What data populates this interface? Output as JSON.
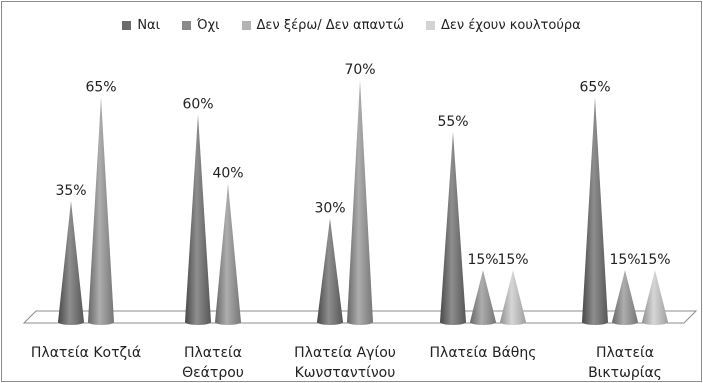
{
  "chart_data": {
    "type": "bar",
    "title": "",
    "xlabel": "",
    "ylabel": "",
    "ylim": [
      0,
      70
    ],
    "grid": false,
    "legend_placement": "top",
    "categories": [
      "Πλατεία Κοτζιά",
      "Πλατεία Θεάτρου",
      "Πλατεία Αγίου Κωνσταντίνου",
      "Πλατεία Βάθης",
      "Πλατεία Βικτωρίας"
    ],
    "category_lines": [
      [
        "Πλατεία Κοτζιά"
      ],
      [
        "Πλατεία",
        "Θεάτρου"
      ],
      [
        "Πλατεία Αγίου",
        "Κωνσταντίνου"
      ],
      [
        "Πλατεία Βάθης"
      ],
      [
        "Πλατεία",
        "Βικτωρίας"
      ]
    ],
    "series": [
      {
        "name": "Ναι",
        "color": "#6b6b6b",
        "values": [
          35,
          60,
          30,
          55,
          65
        ],
        "labels": [
          "35%",
          "60%",
          "30%",
          "55%",
          "65%"
        ]
      },
      {
        "name": "Όχι",
        "color": "#8a8a8a",
        "values": [
          65,
          40,
          70,
          15,
          15
        ],
        "labels": [
          "65%",
          "40%",
          "70%",
          "15%",
          "15%"
        ]
      },
      {
        "name": "Δεν ξέρω/ Δεν απαντώ",
        "color": "#b3b3b3",
        "values": [
          null,
          null,
          null,
          15,
          15
        ],
        "labels": [
          null,
          null,
          null,
          "15%",
          "15%"
        ]
      },
      {
        "name": "Δεν έχουν κουλτούρα",
        "color": "#d4d4d4",
        "values": [
          null,
          null,
          null,
          null,
          null
        ],
        "labels": [
          null,
          null,
          null,
          null,
          null
        ]
      }
    ]
  }
}
